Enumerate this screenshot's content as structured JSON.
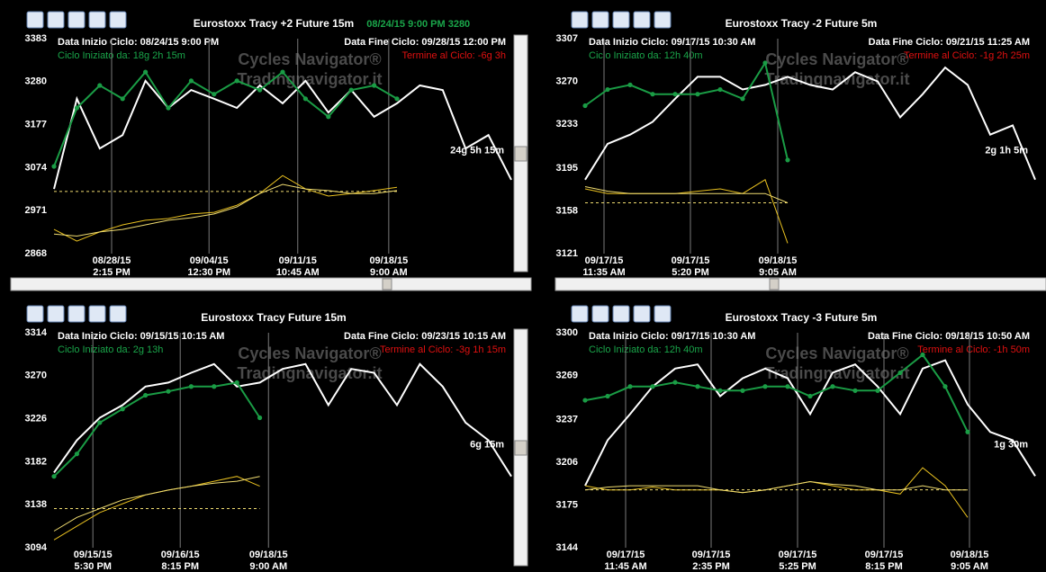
{
  "chart_data": [
    {
      "type": "line",
      "title": "Eurostoxx  Tracy +2  Future 15m",
      "subtitle": "08/24/15 9:00 PM  3280",
      "annotations": {
        "start": "Data Inizio Ciclo: 08/24/15 9:00 PM",
        "elapsed": "Ciclo Iniziato da: 18g 2h 15m",
        "end": "Data Fine Ciclo: 09/28/15 12:00 PM",
        "remaining": "Termine al Ciclo: -6g 3h",
        "watermark": [
          "Cycles Navigator®",
          "Tradingnavigator.it"
        ],
        "cycle_length": "24g 5h 15m"
      },
      "x": [
        0,
        5,
        10,
        15,
        20,
        25,
        30,
        35,
        40,
        45,
        50,
        55,
        60,
        65,
        70,
        75,
        80,
        85,
        90,
        95,
        100
      ],
      "xlim": [
        0,
        100
      ],
      "xticks": [
        {
          "value": 12.6,
          "label": "08/28/15"
        },
        {
          "value": 33.9,
          "label": "09/04/15"
        },
        {
          "value": 53.3,
          "label": "09/11/15"
        },
        {
          "value": 73.2,
          "label": "09/18/15"
        }
      ],
      "xtick_times": [
        "2:15 PM",
        "12:30 PM",
        "10:45 AM",
        "9:00 AM"
      ],
      "ylim": [
        2868,
        3383
      ],
      "yticks": [
        3383,
        3280,
        3177,
        3074,
        2971,
        2868
      ],
      "reference_line": 3017,
      "series": [
        {
          "color": "#ffffff",
          "values": [
            3023,
            3239,
            3120,
            3152,
            3282,
            3217,
            3260,
            3239,
            3217,
            3271,
            3228,
            3282,
            3206,
            3260,
            3196,
            3228,
            3271,
            3260,
            3120,
            3152,
            3045
          ]
        },
        {
          "color": "#1a9c45",
          "markers": true,
          "values": [
            3077,
            3217,
            3271,
            3239,
            3303,
            3217,
            3282,
            3250,
            3282,
            3260,
            3303,
            3239,
            3196,
            3260,
            3271,
            3239,
            null,
            null,
            null,
            null,
            null
          ]
        },
        {
          "color": "#e8c020",
          "values": [
            2926,
            2898,
            2920,
            2937,
            2948,
            2952,
            2963,
            2967,
            2984,
            3012,
            3055,
            3023,
            3006,
            3012,
            3019,
            3027,
            null,
            null,
            null,
            null,
            null
          ]
        },
        {
          "color": "#f0dc70",
          "values": [
            2915,
            2910,
            2920,
            2926,
            2937,
            2948,
            2954,
            2963,
            2980,
            3012,
            3034,
            3023,
            3019,
            3012,
            3012,
            3019,
            null,
            null,
            null,
            null,
            null
          ]
        }
      ]
    },
    {
      "type": "line",
      "title": "Eurostoxx  Tracy -2  Future 5m",
      "annotations": {
        "start": "Data Inizio Ciclo: 09/17/15 10:30 AM",
        "elapsed": "Ciclo Iniziato da: 12h 40m",
        "end": "Data Fine Ciclo: 09/21/15 11:25 AM",
        "remaining": "Termine al Ciclo: -1g 2h 25m",
        "watermark": [
          "Cycles Navigator®",
          "Tradingnavigator.it"
        ],
        "cycle_length": "2g 1h 5m"
      },
      "x": [
        0,
        5,
        10,
        15,
        20,
        25,
        30,
        35,
        40,
        45,
        50,
        55,
        60,
        65,
        70,
        75,
        80,
        85,
        90,
        95,
        100
      ],
      "xlim": [
        0,
        100
      ],
      "xticks": [
        {
          "value": 4.2,
          "label": "09/17/15"
        },
        {
          "value": 23.4,
          "label": "09/17/15"
        },
        {
          "value": 42.8,
          "label": "09/18/15"
        }
      ],
      "xtick_times": [
        "11:35 AM",
        "5:20 PM",
        "9:05 AM"
      ],
      "ylim": [
        3121,
        3307
      ],
      "yticks": [
        3307,
        3270,
        3233,
        3195,
        3158,
        3121
      ],
      "reference_line": 3165,
      "series": [
        {
          "color": "#ffffff",
          "values": [
            3185,
            3216,
            3224,
            3235,
            3255,
            3274,
            3274,
            3263,
            3267,
            3274,
            3267,
            3263,
            3278,
            3270,
            3239,
            3259,
            3282,
            3267,
            3224,
            3232,
            3185
          ]
        },
        {
          "color": "#1a9c45",
          "markers": true,
          "values": [
            3249,
            3263,
            3267,
            3259,
            3259,
            3259,
            3263,
            3255,
            3286,
            3202,
            null,
            null,
            null,
            null,
            null,
            null,
            null,
            null,
            null,
            null,
            null
          ]
        },
        {
          "color": "#e8c020",
          "values": [
            3177,
            3173,
            3173,
            3173,
            3173,
            3175,
            3177,
            3173,
            3185,
            3130,
            null,
            null,
            null,
            null,
            null,
            null,
            null,
            null,
            null,
            null,
            null
          ]
        },
        {
          "color": "#f0dc70",
          "values": [
            3179,
            3175,
            3173,
            3173,
            3173,
            3173,
            3173,
            3173,
            3173,
            3165,
            null,
            null,
            null,
            null,
            null,
            null,
            null,
            null,
            null,
            null,
            null
          ]
        }
      ]
    },
    {
      "type": "line",
      "title": "Eurostoxx  Tracy  Future 15m",
      "annotations": {
        "start": "Data Inizio Ciclo: 09/15/15 10:15 AM",
        "elapsed": "Ciclo Iniziato da: 2g 13h",
        "end": "Data Fine Ciclo: 09/23/15 10:15 AM",
        "remaining": "Termine al Ciclo: -3g 1h 15m",
        "watermark": [
          "Cycles Navigator®",
          "Tradingnavigator.it"
        ],
        "cycle_length": "6g 15m"
      },
      "x": [
        0,
        5,
        10,
        15,
        20,
        25,
        30,
        35,
        40,
        45,
        50,
        55,
        60,
        65,
        70,
        75,
        80,
        85,
        90,
        95,
        100
      ],
      "xlim": [
        0,
        100
      ],
      "xticks": [
        {
          "value": 8.5,
          "label": "09/15/15"
        },
        {
          "value": 27.6,
          "label": "09/16/15"
        },
        {
          "value": 46.9,
          "label": "09/18/15"
        }
      ],
      "xtick_times": [
        "5:30 PM",
        "8:15 PM",
        "9:00 AM"
      ],
      "ylim": [
        3094,
        3314
      ],
      "yticks": [
        3314,
        3270,
        3226,
        3182,
        3138,
        3094
      ],
      "reference_line": 3134,
      "series": [
        {
          "color": "#ffffff",
          "values": [
            3171,
            3204,
            3227,
            3240,
            3259,
            3263,
            3273,
            3282,
            3259,
            3263,
            3277,
            3282,
            3240,
            3277,
            3273,
            3240,
            3282,
            3259,
            3222,
            3204,
            3167
          ]
        },
        {
          "color": "#1a9c45",
          "markers": true,
          "values": [
            3167,
            3190,
            3222,
            3236,
            3250,
            3254,
            3259,
            3259,
            3263,
            3227,
            null,
            null,
            null,
            null,
            null,
            null,
            null,
            null,
            null,
            null,
            null
          ]
        },
        {
          "color": "#e8c020",
          "values": [
            3102,
            3116,
            3130,
            3139,
            3148,
            3153,
            3157,
            3162,
            3167,
            3157,
            null,
            null,
            null,
            null,
            null,
            null,
            null,
            null,
            null,
            null,
            null
          ]
        },
        {
          "color": "#f0dc70",
          "values": [
            3111,
            3125,
            3134,
            3143,
            3148,
            3153,
            3157,
            3160,
            3162,
            3167,
            null,
            null,
            null,
            null,
            null,
            null,
            null,
            null,
            null,
            null,
            null
          ]
        }
      ]
    },
    {
      "type": "line",
      "title": "Eurostoxx  Tracy -3  Future 5m",
      "annotations": {
        "start": "Data Inizio Ciclo: 09/17/15 10:30 AM",
        "elapsed": "Ciclo Iniziato da: 12h 40m",
        "end": "Data Fine Ciclo: 09/18/15 10:50 AM",
        "remaining": "Termine al Ciclo: -1h 50m",
        "watermark": [
          "Cycles Navigator®",
          "Tradingnavigator.it"
        ],
        "cycle_length": "1g 30m"
      },
      "x": [
        0,
        5,
        10,
        15,
        20,
        25,
        30,
        35,
        40,
        45,
        50,
        55,
        60,
        65,
        70,
        75,
        80,
        85,
        90,
        95,
        100
      ],
      "xlim": [
        0,
        100
      ],
      "xticks": [
        {
          "value": 9,
          "label": "09/17/15"
        },
        {
          "value": 28,
          "label": "09/17/15"
        },
        {
          "value": 47.2,
          "label": "09/17/15"
        },
        {
          "value": 66.4,
          "label": "09/17/15"
        },
        {
          "value": 85.4,
          "label": "09/18/15"
        }
      ],
      "xtick_times": [
        "11:45 AM",
        "2:35 PM",
        "5:25 PM",
        "8:15 PM",
        "9:05 AM"
      ],
      "ylim": [
        3144,
        3300
      ],
      "yticks": [
        3300,
        3269,
        3237,
        3206,
        3175,
        3144
      ],
      "reference_line": 3186,
      "series": [
        {
          "color": "#ffffff",
          "values": [
            3189,
            3222,
            3241,
            3261,
            3274,
            3277,
            3254,
            3267,
            3274,
            3267,
            3241,
            3271,
            3277,
            3261,
            3241,
            3274,
            3280,
            3248,
            3228,
            3222,
            3196
          ]
        },
        {
          "color": "#1a9c45",
          "markers": true,
          "values": [
            3251,
            3254,
            3261,
            3261,
            3264,
            3261,
            3258,
            3258,
            3261,
            3261,
            3254,
            3261,
            3258,
            3258,
            3271,
            3284,
            3261,
            3228,
            null,
            null,
            null
          ]
        },
        {
          "color": "#e8c020",
          "values": [
            3189,
            3186,
            3186,
            3188,
            3186,
            3186,
            3186,
            3184,
            3186,
            3189,
            3192,
            3189,
            3186,
            3186,
            3183,
            3202,
            3189,
            3166,
            null,
            null,
            null
          ]
        },
        {
          "color": "#f0dc70",
          "values": [
            3186,
            3188,
            3189,
            3189,
            3189,
            3189,
            3186,
            3184,
            3186,
            3189,
            3192,
            3190,
            3189,
            3186,
            3186,
            3189,
            3186,
            3186,
            null,
            null,
            null
          ]
        }
      ]
    }
  ]
}
